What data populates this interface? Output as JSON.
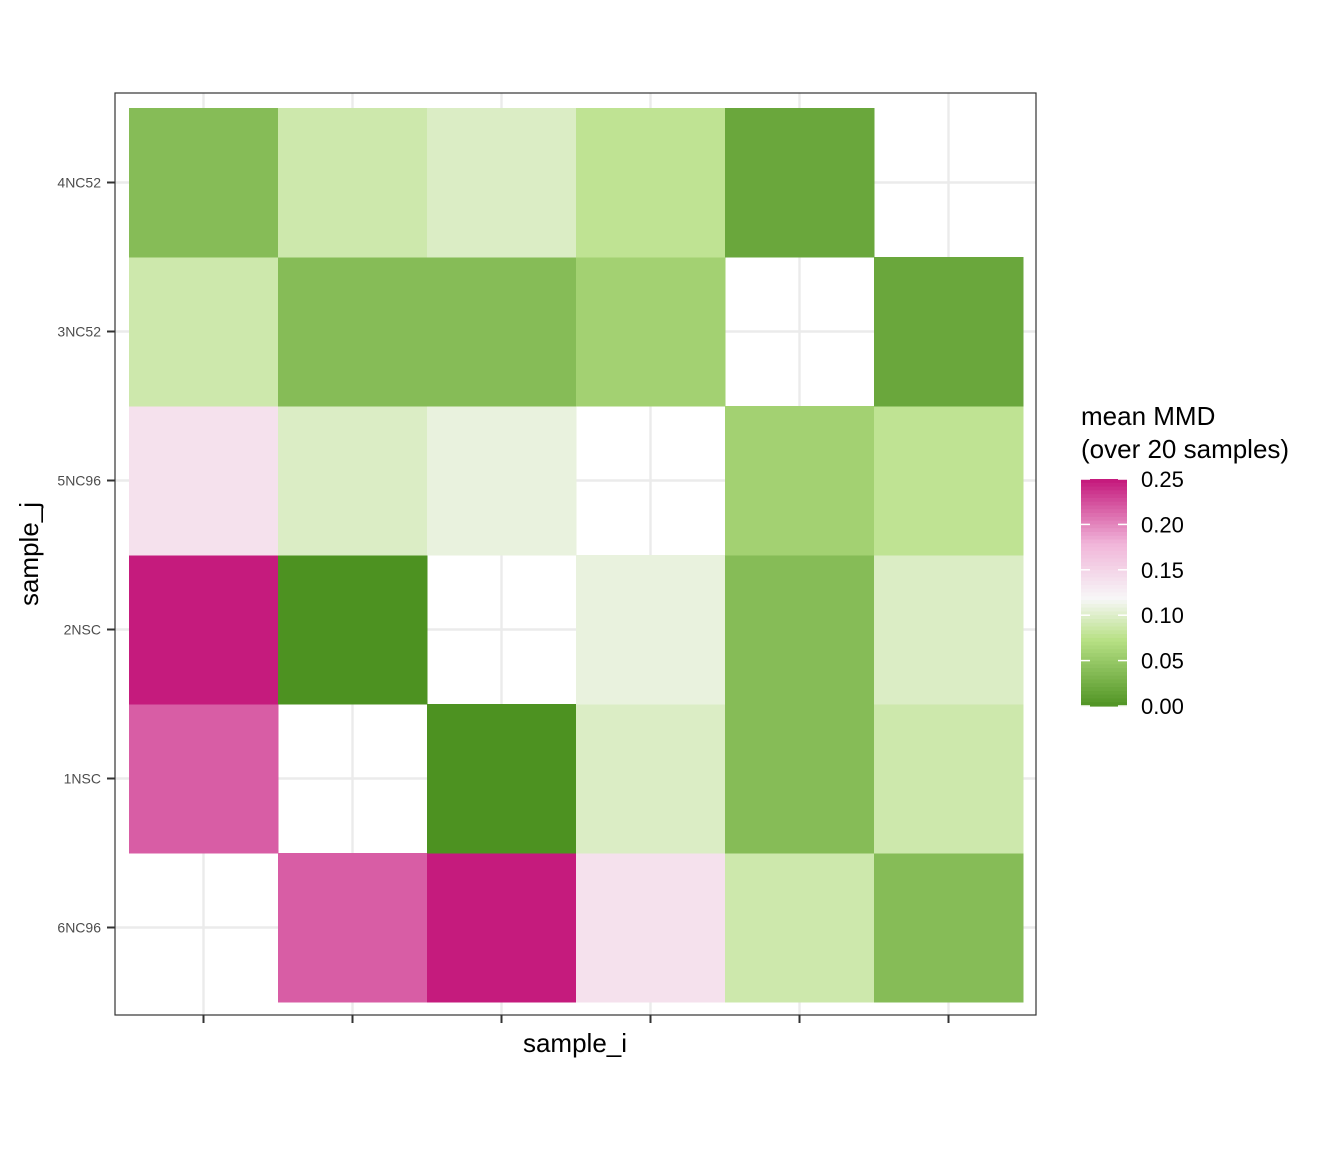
{
  "chart_data": {
    "type": "heatmap",
    "title": "",
    "xlabel": "sample_i",
    "ylabel": "sample_j",
    "x_categories": [
      "",
      "",
      "",
      "",
      "",
      ""
    ],
    "y_categories": [
      "6NC96",
      "1NSC",
      "2NSC",
      "5NC96",
      "3NC52",
      "4NC52"
    ],
    "values": [
      [
        null,
        0.22,
        0.25,
        0.14,
        0.09,
        0.04
      ],
      [
        0.22,
        null,
        0.0,
        0.1,
        0.04,
        0.09
      ],
      [
        0.25,
        0.0,
        null,
        0.11,
        0.04,
        0.1
      ],
      [
        0.14,
        0.1,
        0.11,
        null,
        0.06,
        0.08
      ],
      [
        0.09,
        0.04,
        0.04,
        0.06,
        null,
        0.02
      ],
      [
        0.04,
        0.09,
        0.1,
        0.08,
        0.02,
        null
      ]
    ],
    "grid": true,
    "legend": {
      "title_line1": "mean MMD",
      "title_line2": "(over 20 samples)",
      "placement": "right",
      "min": 0.0,
      "max": 0.25,
      "ticks": [
        "0.25",
        "0.20",
        "0.15",
        "0.10",
        "0.05",
        "0.00"
      ],
      "tick_values": [
        0.25,
        0.2,
        0.15,
        0.1,
        0.05,
        0.0
      ],
      "colors": {
        "low": "#4d9221",
        "mid_low": "#b8e186",
        "mid": "#f7f7f7",
        "mid_high": "#f1b6da",
        "high": "#c51b7d"
      }
    }
  }
}
